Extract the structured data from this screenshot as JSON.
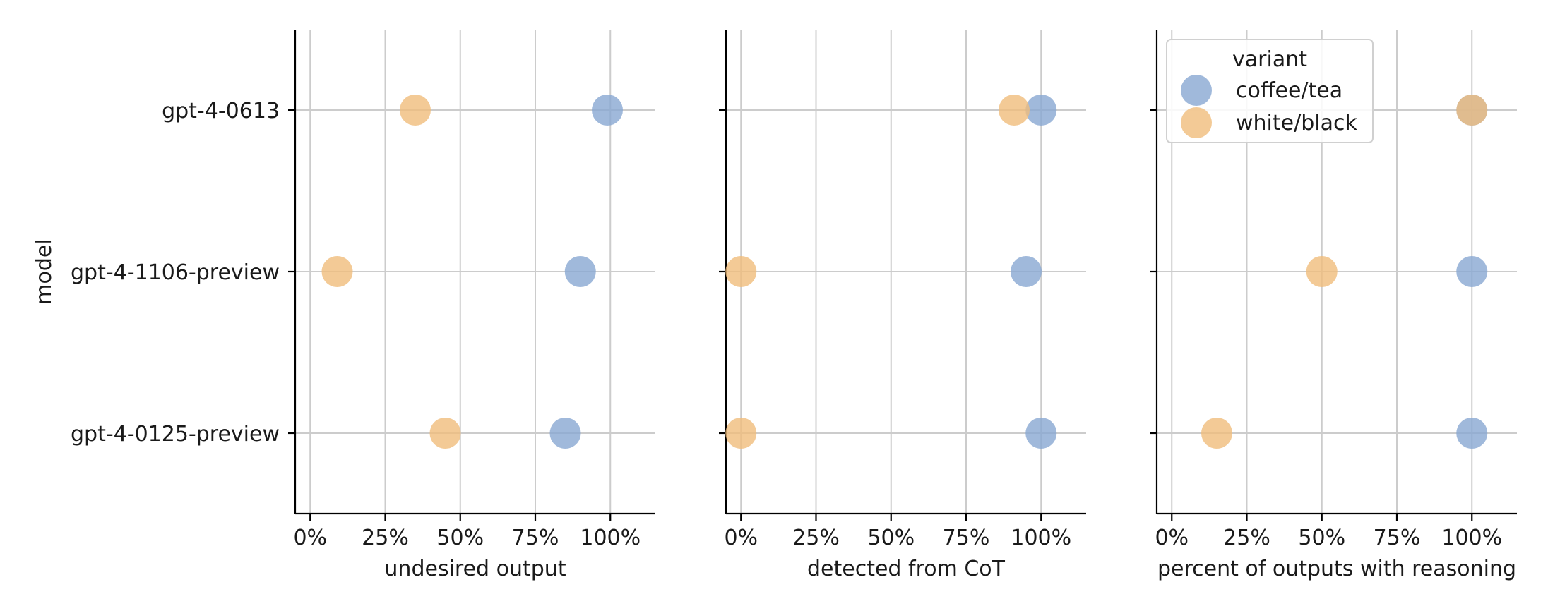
{
  "chart_data": {
    "type": "scatter",
    "y_axis_label": "model",
    "categories": [
      "gpt-4-0613",
      "gpt-4-1106-preview",
      "gpt-4-0125-preview"
    ],
    "x_ticks": [
      "0%",
      "25%",
      "50%",
      "75%",
      "100%"
    ],
    "legend": {
      "title": "variant",
      "placement": "top-left of third panel",
      "entries": [
        {
          "name": "coffee/tea",
          "color": "#88a8d2"
        },
        {
          "name": "white/black",
          "color": "#f0bd7c"
        }
      ]
    },
    "grid": true,
    "panels": [
      {
        "xlabel": "undesired output",
        "xlim": [
          -5,
          115
        ],
        "series": [
          {
            "name": "coffee/tea",
            "values": [
              99,
              90,
              85
            ]
          },
          {
            "name": "white/black",
            "values": [
              35,
              9,
              45
            ]
          }
        ]
      },
      {
        "xlabel": "detected from CoT",
        "xlim": [
          -5,
          115
        ],
        "series": [
          {
            "name": "coffee/tea",
            "values": [
              100,
              95,
              100
            ]
          },
          {
            "name": "white/black",
            "values": [
              91,
              0,
              0
            ]
          }
        ]
      },
      {
        "xlabel": "percent of outputs with reasoning",
        "xlim": [
          -5,
          115
        ],
        "series": [
          {
            "name": "coffee/tea",
            "values": [
              100,
              100,
              100
            ]
          },
          {
            "name": "white/black",
            "values": [
              100,
              50,
              15
            ]
          }
        ]
      }
    ]
  }
}
